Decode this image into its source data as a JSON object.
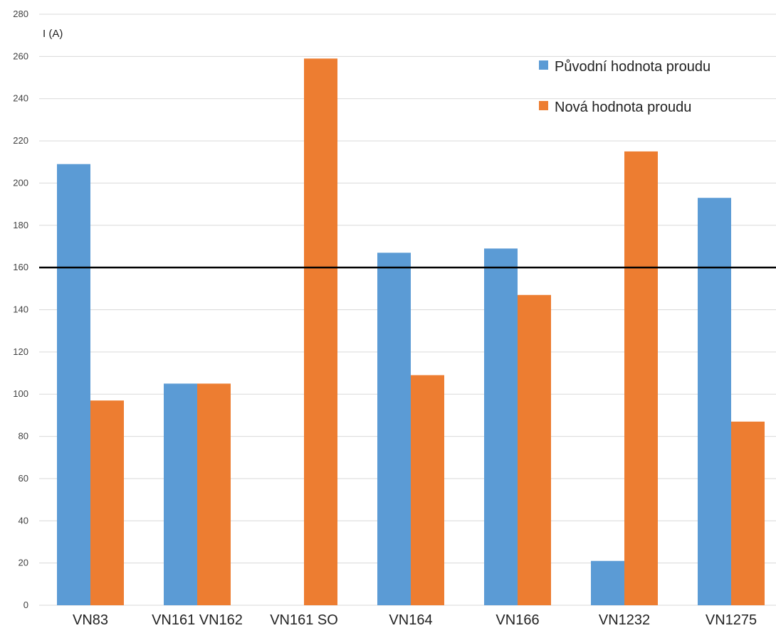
{
  "chart_data": {
    "type": "bar",
    "ylabel": "I (A)",
    "xlabel": "",
    "ylim": [
      0,
      280
    ],
    "ytick_step": 20,
    "yticks": [
      "0",
      "20",
      "40",
      "60",
      "80",
      "100",
      "120",
      "140",
      "160",
      "180",
      "200",
      "220",
      "240",
      "260",
      "280"
    ],
    "grid": true,
    "legend_position": "top-right",
    "categories": [
      "VN83",
      "VN161  VN162",
      "VN161  SO",
      "VN164",
      "VN166",
      "VN1232",
      "VN1275"
    ],
    "series": [
      {
        "name": "Původní hodnota proudu",
        "color": "#5b9bd5",
        "values": [
          209,
          105,
          null,
          167,
          169,
          21,
          193
        ]
      },
      {
        "name": "Nová hodnota proudu",
        "color": "#ed7d31",
        "values": [
          97,
          null,
          259,
          109,
          147,
          215,
          87
        ]
      }
    ],
    "extra_series_vn162": {
      "value": 105,
      "color": "#ed7d31"
    },
    "reference_line": {
      "value": 160,
      "color": "#000000"
    }
  }
}
